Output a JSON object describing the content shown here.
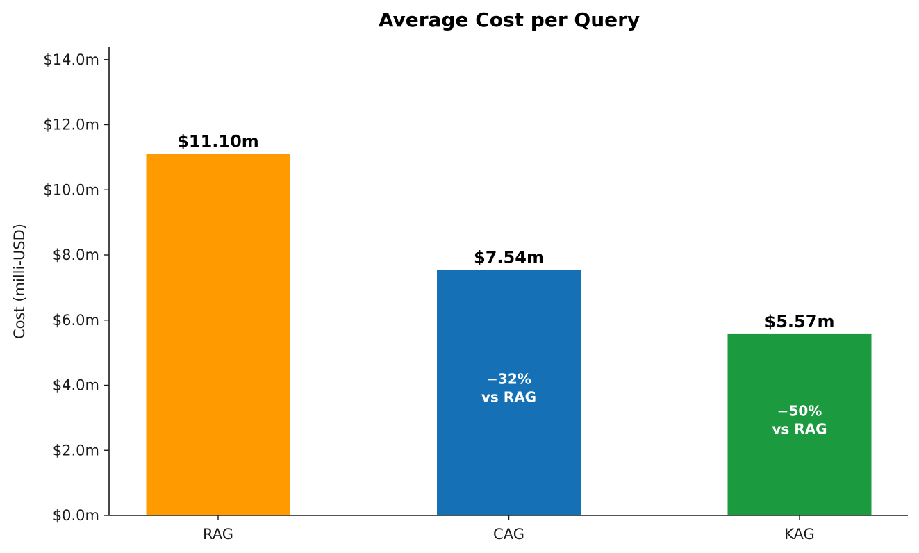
{
  "chart_data": {
    "type": "bar",
    "title": "Average Cost per Query",
    "xlabel": "",
    "ylabel": "Cost (milli-USD)",
    "categories": [
      "RAG",
      "CAG",
      "KAG"
    ],
    "values": [
      11.1,
      7.54,
      5.57
    ],
    "value_labels": [
      "$11.10m",
      "$7.54m",
      "$5.57m"
    ],
    "bar_colors": [
      "#FF9B00",
      "#1570B5",
      "#1C9A3F"
    ],
    "annotations": [
      null,
      {
        "lines": [
          "−32%",
          "vs RAG"
        ]
      },
      {
        "lines": [
          "−50%",
          "vs RAG"
        ]
      }
    ],
    "ylim": [
      0,
      14.4
    ],
    "yticks": [
      0,
      2,
      4,
      6,
      8,
      10,
      12,
      14
    ],
    "ytick_labels": [
      "$0.0m",
      "$2.0m",
      "$4.0m",
      "$6.0m",
      "$8.0m",
      "$10.0m",
      "$12.0m",
      "$14.0m"
    ],
    "grid": false,
    "legend": "none"
  }
}
